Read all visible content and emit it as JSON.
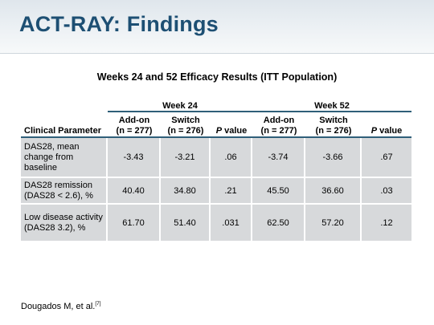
{
  "slide": {
    "title": "ACT-RAY: Findings",
    "subtitle": "Weeks 24 and 52 Efficacy Results (ITT Population)",
    "colors": {
      "title": "#1d4f73",
      "rule": "#2f5f79",
      "cell_fill": "#d7d9db"
    }
  },
  "table": {
    "week_groups": [
      "Week 24",
      "Week 52"
    ],
    "columns": {
      "parameter": "Clinical Parameter",
      "addon_1": "Add-on",
      "addon_n": "(n = 277)",
      "switch_1": "Switch",
      "switch_n": "(n = 276)",
      "p_italic": "P",
      "p_rest": " value"
    },
    "rows": [
      {
        "parameter": "DAS28, mean change from baseline",
        "w24_addon": "-3.43",
        "w24_switch": "-3.21",
        "w24_p": ".06",
        "w52_addon": "-3.74",
        "w52_switch": "-3.66",
        "w52_p": ".67"
      },
      {
        "parameter": "DAS28 remission (DAS28 < 2.6), %",
        "w24_addon": "40.40",
        "w24_switch": "34.80",
        "w24_p": ".21",
        "w52_addon": "45.50",
        "w52_switch": "36.60",
        "w52_p": ".03"
      },
      {
        "parameter": "Low disease activity (DAS28 3.2), %",
        "w24_addon": "61.70",
        "w24_switch": "51.40",
        "w24_p": ".031",
        "w52_addon": "62.50",
        "w52_switch": "57.20",
        "w52_p": ".12"
      }
    ]
  },
  "footnote": {
    "text": "Dougados M, et al.",
    "ref": "[7]"
  }
}
